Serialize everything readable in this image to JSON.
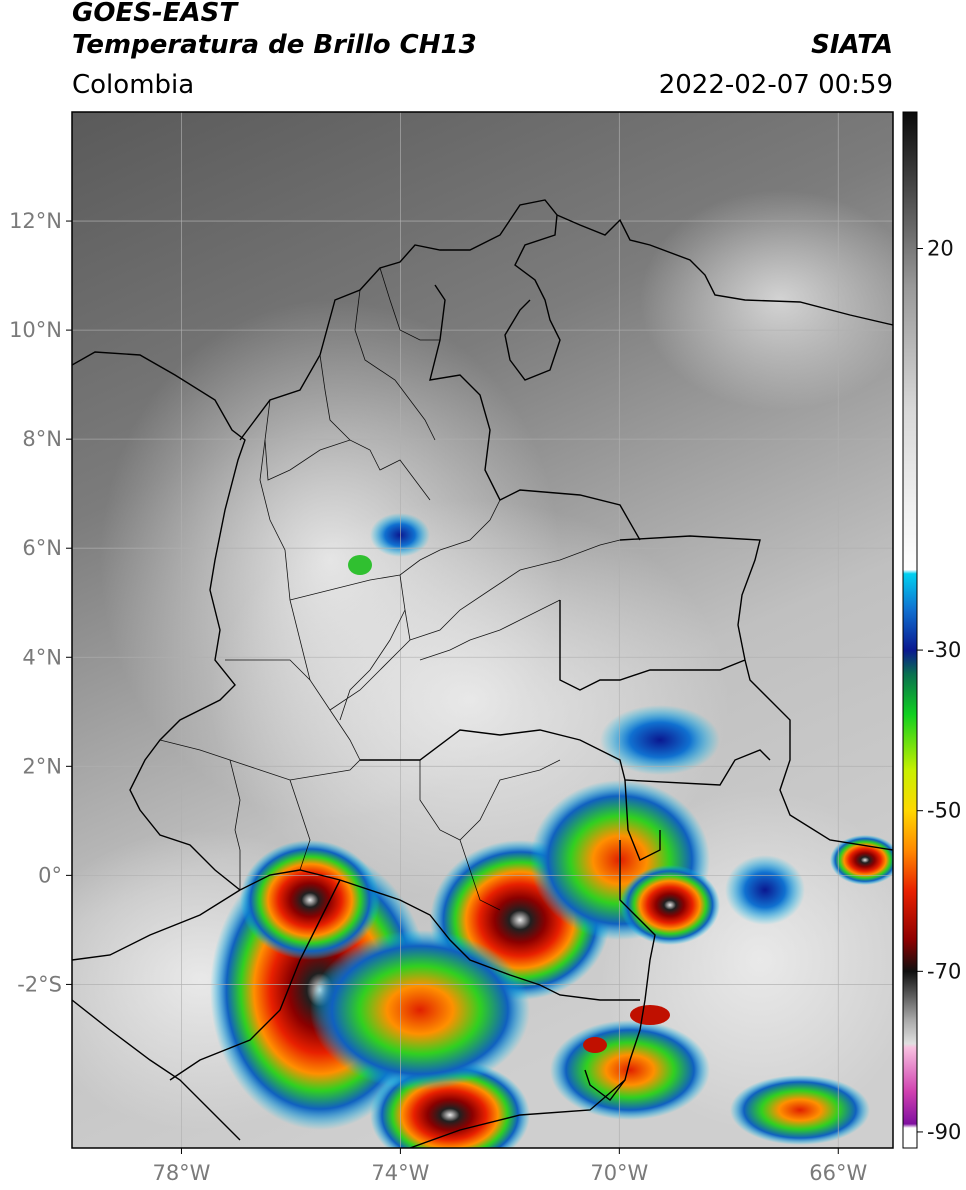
{
  "header": {
    "satellite": "GOES-EAST",
    "product": "Temperatura de Brillo CH13",
    "organization": "SIATA",
    "region": "Colombia",
    "timestamp": "2022-02-07 00:59"
  },
  "map": {
    "lon_range": [
      -80,
      -65
    ],
    "lat_range": [
      -5,
      14
    ],
    "lon_ticks": [
      {
        "value": -78,
        "label": "78°W"
      },
      {
        "value": -74,
        "label": "74°W"
      },
      {
        "value": -70,
        "label": "70°W"
      },
      {
        "value": -66,
        "label": "66°W"
      }
    ],
    "lat_ticks": [
      {
        "value": 12,
        "label": "12°N"
      },
      {
        "value": 10,
        "label": "10°N"
      },
      {
        "value": 8,
        "label": "8°N"
      },
      {
        "value": 6,
        "label": "6°N"
      },
      {
        "value": 4,
        "label": "4°N"
      },
      {
        "value": 2,
        "label": "2°N"
      },
      {
        "value": 0,
        "label": "0°"
      },
      {
        "value": -2,
        "label": "-2°S"
      }
    ],
    "grid": true,
    "colors": {
      "cloudfree_dark": "#5a5a5a",
      "cloud_light": "#d4d4d4",
      "borders": "#000000",
      "gridlines": "#b0b0b0"
    }
  },
  "colorbar": {
    "range": [
      -92,
      37
    ],
    "ticks": [
      {
        "value": 20,
        "label": "20"
      },
      {
        "value": -30,
        "label": "-30"
      },
      {
        "value": -50,
        "label": "-50"
      },
      {
        "value": -70,
        "label": "-70"
      },
      {
        "value": -90,
        "label": "-90"
      }
    ],
    "stops": [
      {
        "value": 37,
        "color": "#0a0a0a"
      },
      {
        "value": 28,
        "color": "#444444"
      },
      {
        "value": 15,
        "color": "#9a9a9a"
      },
      {
        "value": 0,
        "color": "#d8d8d8"
      },
      {
        "value": -20,
        "color": "#ffffff"
      },
      {
        "value": -20.5,
        "color": "#00d0f0"
      },
      {
        "value": -25,
        "color": "#1070d0"
      },
      {
        "value": -30,
        "color": "#0a1890"
      },
      {
        "value": -33,
        "color": "#0a7050"
      },
      {
        "value": -38,
        "color": "#10d020"
      },
      {
        "value": -45,
        "color": "#c8f000"
      },
      {
        "value": -50,
        "color": "#ffd800"
      },
      {
        "value": -55,
        "color": "#ff8800"
      },
      {
        "value": -60,
        "color": "#e82000"
      },
      {
        "value": -66,
        "color": "#900000"
      },
      {
        "value": -70,
        "color": "#101010"
      },
      {
        "value": -76,
        "color": "#a8a8a8"
      },
      {
        "value": -79,
        "color": "#e0e0e0"
      },
      {
        "value": -79.5,
        "color": "#f8c0e0"
      },
      {
        "value": -85,
        "color": "#d040b0"
      },
      {
        "value": -89,
        "color": "#8010a0"
      },
      {
        "value": -89.5,
        "color": "#ffffff"
      },
      {
        "value": -92,
        "color": "#ffffff"
      }
    ]
  }
}
